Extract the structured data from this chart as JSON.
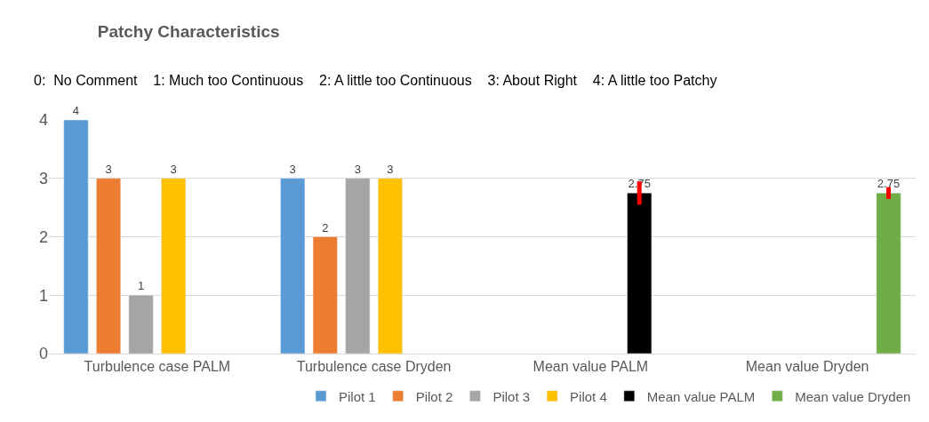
{
  "chart_data": {
    "type": "bar",
    "title": "Patchy Characteristics",
    "subtitle": "0:  No Comment    1: Much too Continuous    2: A little too Continuous    3: About Right    4: A little too Patchy",
    "categories": [
      "Turbulence case PALM",
      "Turbulence case Dryden",
      "Mean value PALM",
      "Mean value Dryden"
    ],
    "series": [
      {
        "name": "Pilot 1",
        "color": "#5b9bd5",
        "values": [
          4,
          3,
          null,
          null
        ]
      },
      {
        "name": "Pilot 2",
        "color": "#ed7d31",
        "values": [
          3,
          2,
          null,
          null
        ]
      },
      {
        "name": "Pilot 3",
        "color": "#a5a5a5",
        "values": [
          1,
          3,
          null,
          null
        ]
      },
      {
        "name": "Pilot 4",
        "color": "#ffc000",
        "values": [
          3,
          3,
          null,
          null
        ]
      },
      {
        "name": "Mean value PALM",
        "color": "#000000",
        "values": [
          null,
          null,
          2.75,
          null
        ],
        "errors": [
          null,
          null,
          0.2,
          null
        ]
      },
      {
        "name": "Mean value Dryden",
        "color": "#70ad47",
        "values": [
          null,
          null,
          null,
          2.75
        ],
        "errors": [
          null,
          null,
          null,
          0.1
        ]
      }
    ],
    "ylim": [
      0,
      4
    ],
    "yticks": [
      0,
      1,
      2,
      3,
      4
    ],
    "grid": "y",
    "legend": "bottom",
    "data_labels": true
  }
}
